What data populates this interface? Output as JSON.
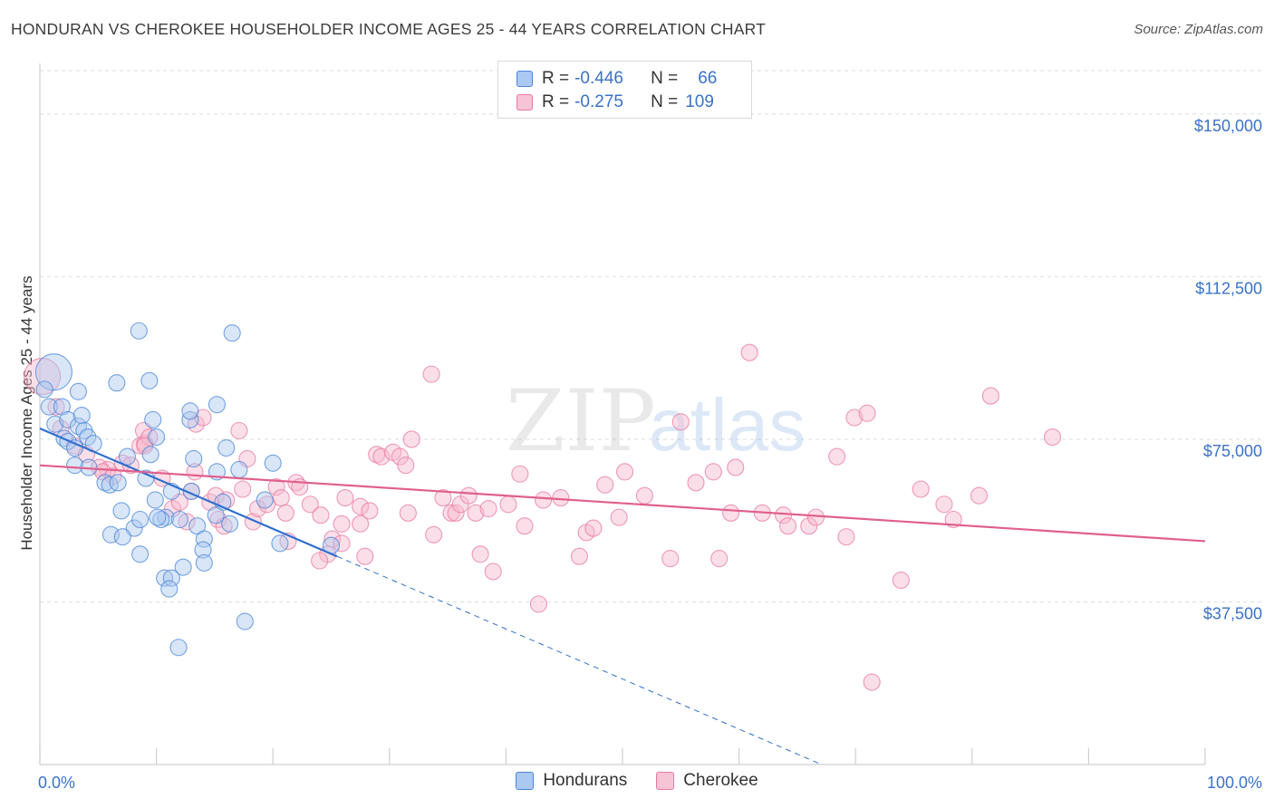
{
  "title": "HONDURAN VS CHEROKEE HOUSEHOLDER INCOME AGES 25 - 44 YEARS CORRELATION CHART",
  "source": "Source: ZipAtlas.com",
  "watermark": {
    "zip": "ZIP",
    "atlas": "atlas"
  },
  "legend": {
    "rows": [
      {
        "r_label": "R =",
        "r_value": "-0.446",
        "n_label": "N =",
        "n_value": "66",
        "color": "#4a86d8"
      },
      {
        "r_label": "R =",
        "r_value": "-0.275",
        "n_label": "N =",
        "n_value": "109",
        "color": "#e87aa0"
      }
    ]
  },
  "chart_data": {
    "type": "scatter",
    "title": "HONDURAN VS CHEROKEE HOUSEHOLDER INCOME AGES 25 - 44 YEARS CORRELATION CHART",
    "xlabel": "",
    "ylabel": "Householder Income Ages 25 - 44 years",
    "xlim": [
      0,
      100
    ],
    "ylim": [
      0,
      160000
    ],
    "x_tick_labels": [
      "0.0%",
      "100.0%"
    ],
    "y_ticks": [
      37500,
      75000,
      112500,
      150000
    ],
    "y_tick_labels": [
      "$37,500",
      "$75,000",
      "$112,500",
      "$150,000"
    ],
    "grid": true,
    "legend_position": "top-center",
    "series": [
      {
        "name": "Hondurans",
        "color": "#4a86d8",
        "fill": "#aac8f0",
        "trend": {
          "x0": 0,
          "y0": 77500,
          "x1": 25.5,
          "y1": 48000,
          "dashed_to_x": 100,
          "dashed_to_y": -38000
        },
        "points": [
          [
            1.2,
            90500
          ],
          [
            0.4,
            86500
          ],
          [
            0.8,
            82500
          ],
          [
            1.9,
            82500
          ],
          [
            1.3,
            78500
          ],
          [
            2.4,
            79500
          ],
          [
            3.3,
            78000
          ],
          [
            3.6,
            80500
          ],
          [
            3.8,
            77000
          ],
          [
            4.1,
            75500
          ],
          [
            2.1,
            75200
          ],
          [
            2.4,
            74500
          ],
          [
            3.0,
            73000
          ],
          [
            4.6,
            74000
          ],
          [
            6.6,
            88000
          ],
          [
            8.5,
            100000
          ],
          [
            9.4,
            88500
          ],
          [
            16.5,
            99500
          ],
          [
            9.5,
            71500
          ],
          [
            7.5,
            71000
          ],
          [
            12.9,
            79500
          ],
          [
            9.7,
            79500
          ],
          [
            9.1,
            66000
          ],
          [
            10.0,
            75500
          ],
          [
            12.9,
            81500
          ],
          [
            13.2,
            70500
          ],
          [
            15.2,
            83000
          ],
          [
            15.2,
            67500
          ],
          [
            17.1,
            68000
          ],
          [
            20.0,
            69500
          ],
          [
            3.0,
            69000
          ],
          [
            4.2,
            68500
          ],
          [
            5.6,
            65000
          ],
          [
            6.0,
            64500
          ],
          [
            6.7,
            65000
          ],
          [
            11.3,
            63000
          ],
          [
            8.1,
            54500
          ],
          [
            8.6,
            56500
          ],
          [
            9.9,
            61000
          ],
          [
            10.8,
            57000
          ],
          [
            10.4,
            56500
          ],
          [
            12.0,
            56500
          ],
          [
            13.0,
            63000
          ],
          [
            13.5,
            55000
          ],
          [
            14.1,
            52000
          ],
          [
            14.0,
            49500
          ],
          [
            16.3,
            55500
          ],
          [
            19.3,
            61000
          ],
          [
            7.0,
            58500
          ],
          [
            10.1,
            57000
          ],
          [
            12.3,
            45500
          ],
          [
            14.1,
            46500
          ],
          [
            6.1,
            53000
          ],
          [
            8.6,
            48500
          ],
          [
            7.1,
            52500
          ],
          [
            10.7,
            43000
          ],
          [
            11.3,
            43000
          ],
          [
            11.1,
            40500
          ],
          [
            17.6,
            33000
          ],
          [
            11.9,
            27000
          ],
          [
            15.7,
            60500
          ],
          [
            15.1,
            57500
          ],
          [
            20.6,
            51000
          ],
          [
            16.0,
            73000
          ],
          [
            3.3,
            86000
          ],
          [
            25.0,
            50500
          ]
        ]
      },
      {
        "name": "Cherokee",
        "color": "#e87aa0",
        "fill": "#f6b8cc",
        "trend": {
          "x0": 0,
          "y0": 69000,
          "x1": 100,
          "y1": 51500
        },
        "points": [
          [
            0.2,
            89500
          ],
          [
            1.4,
            82500
          ],
          [
            1.8,
            77500
          ],
          [
            3.0,
            73500
          ],
          [
            4.0,
            71500
          ],
          [
            5.8,
            68000
          ],
          [
            5.1,
            68500
          ],
          [
            5.4,
            67500
          ],
          [
            6.3,
            66500
          ],
          [
            7.1,
            69500
          ],
          [
            7.8,
            69000
          ],
          [
            8.6,
            73500
          ],
          [
            8.9,
            77000
          ],
          [
            9.0,
            74000
          ],
          [
            9.4,
            75500
          ],
          [
            9.0,
            73500
          ],
          [
            10.5,
            66000
          ],
          [
            11.4,
            59000
          ],
          [
            12.0,
            60500
          ],
          [
            12.6,
            56000
          ],
          [
            13.0,
            63000
          ],
          [
            13.4,
            78500
          ],
          [
            14.0,
            80000
          ],
          [
            13.3,
            67500
          ],
          [
            14.6,
            60500
          ],
          [
            15.1,
            62000
          ],
          [
            15.3,
            56500
          ],
          [
            15.8,
            55000
          ],
          [
            16.0,
            61000
          ],
          [
            17.1,
            77000
          ],
          [
            17.8,
            70500
          ],
          [
            17.4,
            63500
          ],
          [
            18.3,
            56000
          ],
          [
            18.7,
            59000
          ],
          [
            19.5,
            60000
          ],
          [
            20.3,
            64000
          ],
          [
            20.7,
            61500
          ],
          [
            21.1,
            58000
          ],
          [
            21.3,
            51500
          ],
          [
            22.0,
            65000
          ],
          [
            22.3,
            64000
          ],
          [
            23.2,
            60000
          ],
          [
            24.1,
            57500
          ],
          [
            24.7,
            48500
          ],
          [
            24.0,
            47000
          ],
          [
            25.1,
            52000
          ],
          [
            25.9,
            55500
          ],
          [
            25.9,
            51000
          ],
          [
            26.2,
            61500
          ],
          [
            27.5,
            59500
          ],
          [
            27.5,
            55500
          ],
          [
            27.9,
            48000
          ],
          [
            28.3,
            58500
          ],
          [
            28.9,
            71500
          ],
          [
            29.3,
            71000
          ],
          [
            30.3,
            72000
          ],
          [
            30.9,
            71000
          ],
          [
            31.4,
            69000
          ],
          [
            31.6,
            58000
          ],
          [
            31.9,
            75000
          ],
          [
            33.6,
            90000
          ],
          [
            33.8,
            53000
          ],
          [
            34.6,
            61500
          ],
          [
            35.3,
            58000
          ],
          [
            35.7,
            58000
          ],
          [
            36.1,
            60000
          ],
          [
            36.8,
            62000
          ],
          [
            37.4,
            58000
          ],
          [
            37.8,
            48500
          ],
          [
            38.5,
            59000
          ],
          [
            38.9,
            44500
          ],
          [
            40.2,
            60000
          ],
          [
            41.2,
            67000
          ],
          [
            41.6,
            55000
          ],
          [
            42.8,
            37000
          ],
          [
            43.2,
            61000
          ],
          [
            44.7,
            61500
          ],
          [
            46.3,
            48000
          ],
          [
            46.9,
            53500
          ],
          [
            47.5,
            54500
          ],
          [
            48.5,
            64500
          ],
          [
            49.7,
            57000
          ],
          [
            50.2,
            67500
          ],
          [
            51.9,
            62000
          ],
          [
            54.1,
            47500
          ],
          [
            55.0,
            79000
          ],
          [
            56.3,
            65000
          ],
          [
            57.8,
            67500
          ],
          [
            58.3,
            47500
          ],
          [
            59.3,
            58000
          ],
          [
            59.7,
            68500
          ],
          [
            60.9,
            95000
          ],
          [
            62.0,
            58000
          ],
          [
            63.8,
            57500
          ],
          [
            64.2,
            55000
          ],
          [
            66.0,
            55000
          ],
          [
            66.6,
            57000
          ],
          [
            68.4,
            71000
          ],
          [
            69.2,
            52500
          ],
          [
            69.9,
            80000
          ],
          [
            71.0,
            81000
          ],
          [
            71.4,
            19000
          ],
          [
            73.9,
            42500
          ],
          [
            75.6,
            63500
          ],
          [
            77.6,
            60000
          ],
          [
            78.4,
            56500
          ],
          [
            80.6,
            62000
          ],
          [
            81.6,
            85000
          ],
          [
            86.9,
            75500
          ]
        ]
      }
    ]
  },
  "bottom_legend": [
    {
      "label": "Hondurans",
      "color": "#4a86d8"
    },
    {
      "label": "Cherokee",
      "color": "#e87aa0"
    }
  ]
}
